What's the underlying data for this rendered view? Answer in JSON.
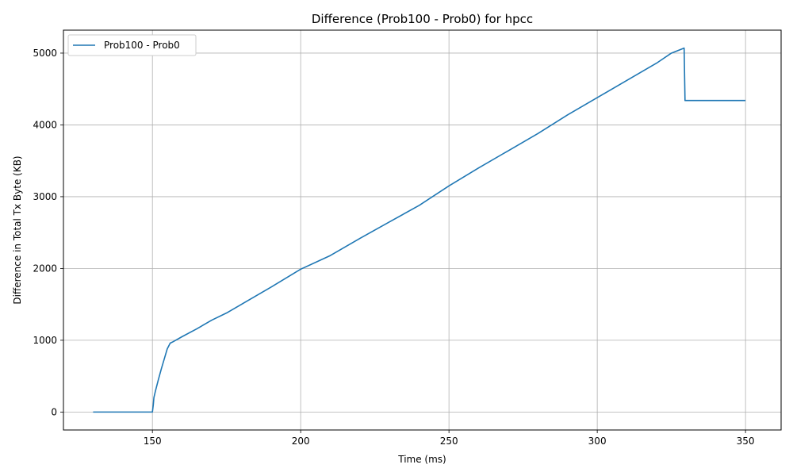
{
  "chart_data": {
    "type": "line",
    "title": "Difference (Prob100 - Prob0) for hpcc",
    "xlabel": "Time (ms)",
    "ylabel": "Difference in Total Tx Byte (KB)",
    "xlim": [
      120,
      362
    ],
    "ylim": [
      -250,
      5320
    ],
    "xticks": [
      150,
      200,
      250,
      300,
      350
    ],
    "yticks": [
      0,
      1000,
      2000,
      3000,
      4000,
      5000
    ],
    "grid": true,
    "legend_position": "top-left",
    "series": [
      {
        "name": "Prob100 - Prob0",
        "color": "#1f77b4",
        "x": [
          130,
          140,
          150,
          150.3,
          150.5,
          151,
          152,
          153,
          154,
          155,
          156,
          156.5,
          157,
          160,
          165,
          170,
          175,
          180,
          190,
          200,
          210,
          220,
          230,
          240,
          250,
          260,
          270,
          280,
          290,
          300,
          310,
          320,
          325,
          329.3,
          329.6,
          330,
          340,
          350
        ],
        "y": [
          0,
          0,
          0,
          100,
          200,
          290,
          450,
          600,
          740,
          880,
          960,
          970,
          980,
          1050,
          1160,
          1280,
          1380,
          1500,
          1740,
          1990,
          2180,
          2420,
          2650,
          2880,
          3150,
          3400,
          3640,
          3880,
          4140,
          4380,
          4620,
          4860,
          5000,
          5070,
          4340,
          4340,
          4340,
          4340
        ]
      }
    ]
  }
}
